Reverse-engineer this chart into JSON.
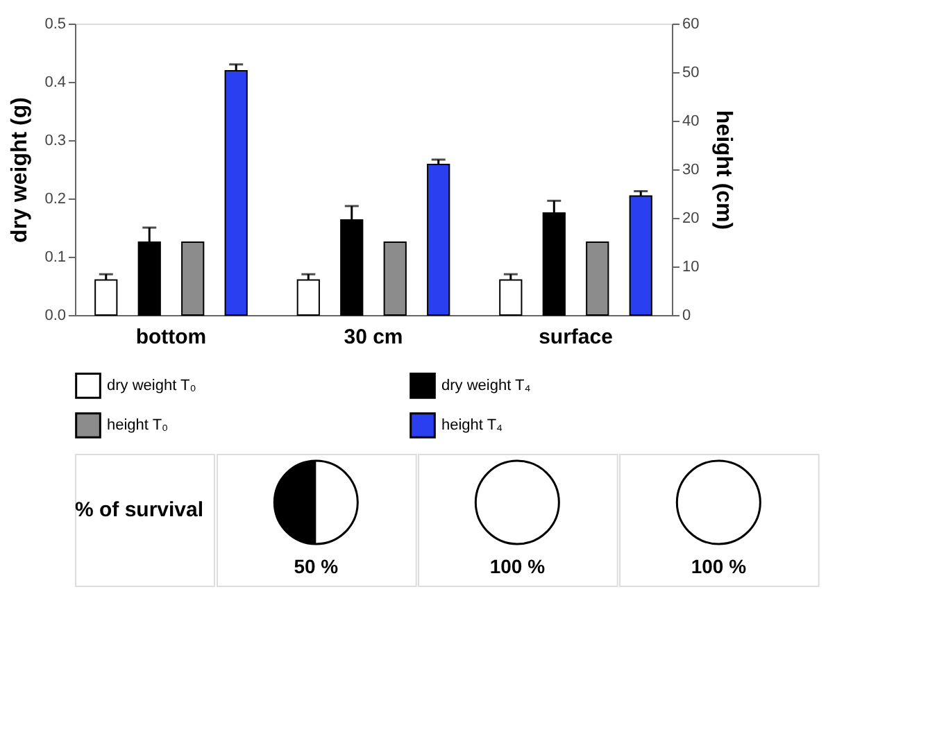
{
  "chart_data": [
    {
      "type": "bar",
      "categories": [
        "bottom",
        "30 cm",
        "surface"
      ],
      "ylabel": "dry weight (g)",
      "y2label": "height (cm)",
      "ylim": [
        0,
        0.5
      ],
      "yticks": [
        {
          "value": 0,
          "label": "0.0"
        },
        0.1,
        0.2,
        0.3,
        0.4,
        0.5
      ],
      "y2lim": [
        0,
        60
      ],
      "y2ticks": [
        0,
        10,
        20,
        30,
        40,
        50,
        60
      ],
      "legend": "bottom",
      "grid": false,
      "series": [
        {
          "name": "dry weight T₀",
          "color": "#ffffff",
          "axis": "y",
          "values": [
            0.06,
            0.06,
            0.06
          ],
          "errors": [
            [
              0.06,
              0.07
            ],
            [
              0.06,
              0.07
            ],
            [
              0.06,
              0.07
            ]
          ]
        },
        {
          "name": "dry weight T₄",
          "color": "#000000",
          "axis": "y",
          "values": [
            0.125,
            0.163,
            0.175
          ],
          "errors": [
            [
              0.125,
              0.15
            ],
            [
              0.163,
              0.187
            ],
            [
              0.175,
              0.196
            ]
          ]
        },
        {
          "name": "height T₀",
          "color": "#8c8c8c",
          "axis": "y2",
          "values": [
            15,
            15,
            15
          ]
        },
        {
          "name": "height T₄",
          "color": "#2a3ff0",
          "axis": "y2",
          "values": [
            50.3,
            31,
            24.5
          ],
          "errors": [
            [
              50.3,
              51.6
            ],
            [
              31,
              32
            ],
            [
              24.5,
              25.5
            ]
          ]
        }
      ]
    },
    {
      "type": "other",
      "title": "% of survival",
      "values": [
        50,
        100,
        100
      ],
      "value_labels": [
        "50 %",
        "100 %",
        "100 %"
      ],
      "colors": [
        "#000000",
        "#000000",
        "#000000"
      ]
    }
  ]
}
